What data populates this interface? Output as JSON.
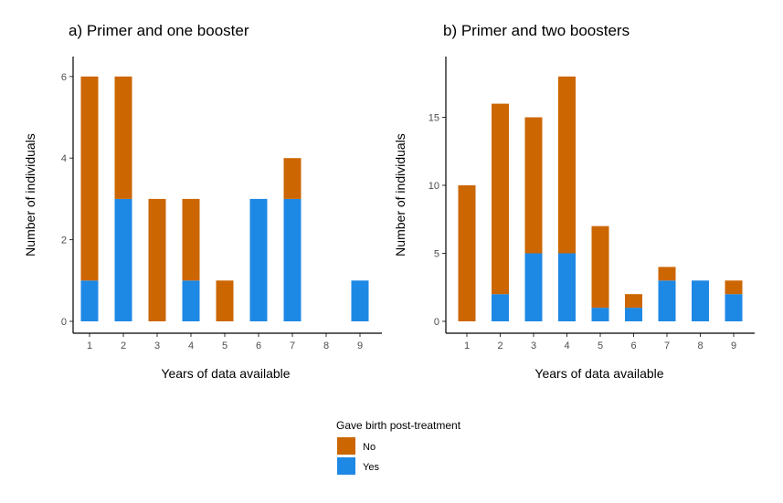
{
  "chart_data": [
    {
      "type": "bar",
      "stacked": true,
      "title": "a) Primer and one booster",
      "xlabel": "Years of data available",
      "ylabel": "Number of individuals",
      "categories": [
        "1",
        "2",
        "3",
        "4",
        "5",
        "6",
        "7",
        "8",
        "9"
      ],
      "yticks": [
        "0",
        "2",
        "4",
        "6"
      ],
      "ylim": [
        0,
        6.3
      ],
      "series": [
        {
          "name": "Yes",
          "values": [
            1,
            3,
            0,
            1,
            0,
            3,
            3,
            0,
            1
          ]
        },
        {
          "name": "No",
          "values": [
            5,
            3,
            3,
            2,
            1,
            0,
            1,
            0,
            0
          ]
        }
      ]
    },
    {
      "type": "bar",
      "stacked": true,
      "title": "b) Primer and two boosters",
      "xlabel": "Years of data available",
      "ylabel": "Number of individuals",
      "categories": [
        "1",
        "2",
        "3",
        "4",
        "5",
        "6",
        "7",
        "8",
        "9"
      ],
      "yticks": [
        "0",
        "5",
        "10",
        "15"
      ],
      "ylim": [
        0,
        18.9
      ],
      "series": [
        {
          "name": "Yes",
          "values": [
            0,
            2,
            5,
            5,
            1,
            1,
            3,
            3,
            2
          ]
        },
        {
          "name": "No",
          "values": [
            10,
            14,
            10,
            13,
            6,
            1,
            1,
            0,
            1
          ]
        }
      ]
    }
  ],
  "legend": {
    "title": "Gave birth post-treatment",
    "placement": "bottom",
    "items": [
      {
        "label": "No",
        "color": "#CC6600"
      },
      {
        "label": "Yes",
        "color": "#1E88E5"
      }
    ]
  },
  "colors": {
    "No": "#CC6600",
    "Yes": "#1E88E5"
  }
}
